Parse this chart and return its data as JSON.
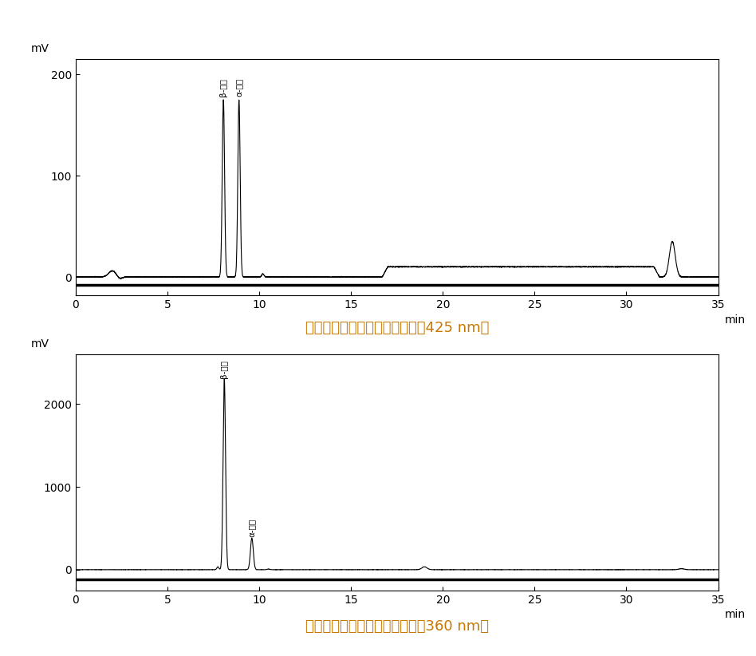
{
  "title1": "萘酚标准样品梯度洗脱色谱图（425 nm）",
  "title2": "萘酚标准样品梯度洗脱色谱图（360 nm）",
  "title_color": "#c87800",
  "ylabel": "mV",
  "xlabel": "min",
  "bg_color": "#ffffff",
  "plot_bg": "#ffffff",
  "line_color": "#000000",
  "label1_beta": "β-萘酚",
  "label1_alpha": "α-萘酚",
  "label2_beta": "β-萘酚",
  "label2_alpha": "α-萘酚",
  "plot1_ylim": [
    -18,
    215
  ],
  "plot2_ylim": [
    -250,
    2600
  ],
  "xmin": 0,
  "xmax": 35,
  "xticks": [
    0,
    5,
    10,
    15,
    20,
    25,
    30,
    35
  ],
  "plot1_yticks": [
    0,
    100,
    200
  ],
  "plot2_yticks": [
    0,
    1000,
    2000
  ]
}
